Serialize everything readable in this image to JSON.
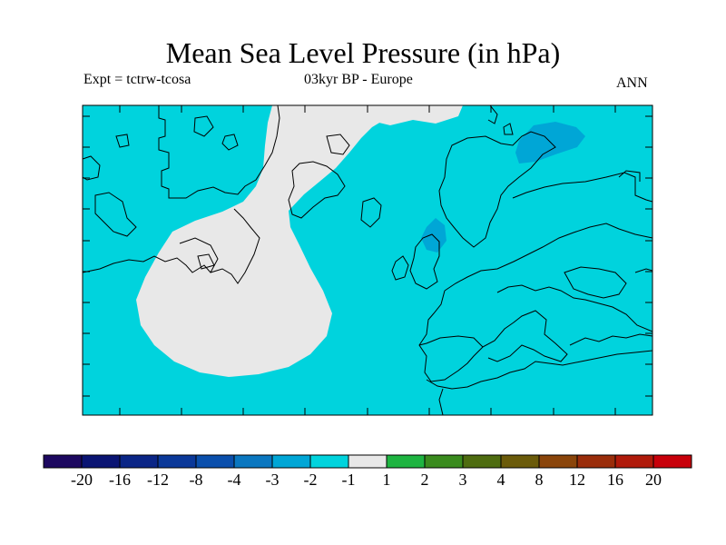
{
  "title": "Mean Sea Level Pressure (in hPa)",
  "subtitle_left": "Expt = tctrw-tcosa",
  "subtitle_center": "03kyr BP - Europe",
  "subtitle_right": "ANN",
  "colors": {
    "ocean_fill": "#00D3DD",
    "neutral_fill": "#E8E8E8",
    "negative_patch": "#00A6D6",
    "coastline": "#000000"
  },
  "colorbar": {
    "colors": [
      "#1D0860",
      "#0A1473",
      "#0A2586",
      "#0A3899",
      "#0A4FAC",
      "#0A77C0",
      "#00A6D6",
      "#00D3DD",
      "#E8E8E8",
      "#1EB441",
      "#3A8B1E",
      "#4E6C10",
      "#6B5B0A",
      "#8A450A",
      "#9A2D0A",
      "#B01A0A",
      "#C8000A"
    ],
    "labels": [
      "-20",
      "-16",
      "-12",
      "-8",
      "-4",
      "-3",
      "-2",
      "-1",
      "1",
      "2",
      "3",
      "4",
      "8",
      "12",
      "16",
      "20"
    ]
  }
}
